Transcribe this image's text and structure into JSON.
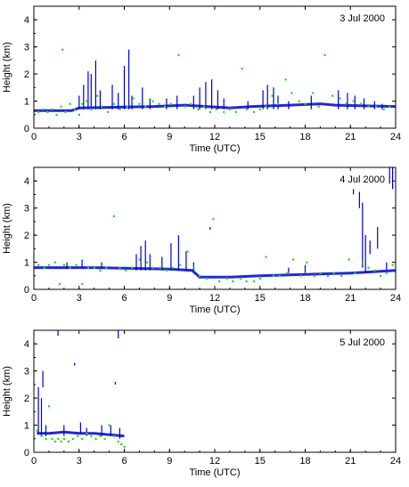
{
  "colors": {
    "cloud_base": "#0000cc",
    "green_points": "#22dd22",
    "frame": "#000000"
  },
  "chart_data": [
    {
      "type": "scatter",
      "title": "3 Jul 2000",
      "xlabel": "Time (UTC)",
      "ylabel": "Height (km)",
      "xlim": [
        0,
        24
      ],
      "ylim": [
        0,
        4.5
      ],
      "xticks": [
        "0",
        "3",
        "6",
        "9",
        "12",
        "15",
        "18",
        "21",
        "24"
      ],
      "yticks": [
        "0",
        "1",
        "2",
        "3",
        "4"
      ],
      "series": [
        {
          "color": "#0000cc",
          "marker": "vertical-streak",
          "points": [
            [
              3.0,
              0.7,
              1.2
            ],
            [
              3.3,
              0.7,
              1.6
            ],
            [
              3.6,
              0.7,
              2.1
            ],
            [
              3.8,
              0.7,
              2.0
            ],
            [
              4.1,
              0.7,
              2.5
            ],
            [
              4.4,
              0.7,
              1.4
            ],
            [
              5.2,
              0.7,
              1.6
            ],
            [
              5.6,
              0.7,
              1.3
            ],
            [
              6.0,
              0.7,
              2.3
            ],
            [
              6.3,
              0.7,
              2.9
            ],
            [
              6.5,
              0.7,
              1.2
            ],
            [
              7.2,
              0.7,
              1.5
            ],
            [
              7.7,
              0.7,
              1.1
            ],
            [
              8.8,
              0.7,
              1.1
            ],
            [
              9.5,
              0.7,
              1.2
            ],
            [
              10.6,
              0.7,
              1.2
            ],
            [
              11.0,
              0.7,
              1.5
            ],
            [
              11.4,
              0.7,
              1.7
            ],
            [
              11.8,
              0.7,
              1.8
            ],
            [
              12.2,
              0.7,
              1.4
            ],
            [
              12.6,
              0.7,
              1.1
            ],
            [
              14.2,
              0.7,
              1.0
            ],
            [
              15.2,
              0.7,
              1.4
            ],
            [
              15.5,
              0.7,
              1.6
            ],
            [
              15.9,
              0.7,
              1.5
            ],
            [
              16.2,
              0.7,
              1.2
            ],
            [
              16.9,
              0.7,
              1.0
            ],
            [
              18.4,
              0.7,
              1.2
            ],
            [
              20.2,
              0.7,
              1.4
            ],
            [
              20.8,
              0.7,
              1.3
            ],
            [
              21.3,
              0.7,
              1.2
            ],
            [
              21.9,
              0.7,
              1.1
            ],
            [
              22.6,
              0.7,
              1.0
            ],
            [
              23.1,
              0.7,
              0.9
            ]
          ],
          "baseline": {
            "x": [
              0.0,
              2.5,
              3.0,
              8.0,
              10.0,
              13.0,
              14.5,
              17.0,
              19.0,
              20.0,
              24.0
            ],
            "y": [
              0.65,
              0.65,
              0.75,
              0.8,
              0.85,
              0.75,
              0.8,
              0.85,
              0.9,
              0.85,
              0.8
            ]
          }
        },
        {
          "color": "#22dd22",
          "marker": "dot",
          "points": [
            [
              0.3,
              0.6
            ],
            [
              0.6,
              0.7
            ],
            [
              0.9,
              0.6
            ],
            [
              1.2,
              0.7
            ],
            [
              1.5,
              0.5
            ],
            [
              1.8,
              0.8
            ],
            [
              1.9,
              2.9
            ],
            [
              2.1,
              0.6
            ],
            [
              2.4,
              0.9
            ],
            [
              2.7,
              0.7
            ],
            [
              3.0,
              0.5
            ],
            [
              3.2,
              0.9
            ],
            [
              3.5,
              1.0
            ],
            [
              3.8,
              0.7
            ],
            [
              4.2,
              1.2
            ],
            [
              4.5,
              0.8
            ],
            [
              4.9,
              0.6
            ],
            [
              5.3,
              0.9
            ],
            [
              5.7,
              0.7
            ],
            [
              6.2,
              0.8
            ],
            [
              6.6,
              1.1
            ],
            [
              7.0,
              0.9
            ],
            [
              7.4,
              0.8
            ],
            [
              7.9,
              1.0
            ],
            [
              8.3,
              0.9
            ],
            [
              8.7,
              0.8
            ],
            [
              9.1,
              0.9
            ],
            [
              9.6,
              2.7
            ],
            [
              10.0,
              0.8
            ],
            [
              10.4,
              0.9
            ],
            [
              10.9,
              0.7
            ],
            [
              11.3,
              0.8
            ],
            [
              11.7,
              0.6
            ],
            [
              12.1,
              0.7
            ],
            [
              12.6,
              0.6
            ],
            [
              13.0,
              0.7
            ],
            [
              13.4,
              0.6
            ],
            [
              13.8,
              2.2
            ],
            [
              14.1,
              0.7
            ],
            [
              14.6,
              0.6
            ],
            [
              15.0,
              0.7
            ],
            [
              15.4,
              0.8
            ],
            [
              15.8,
              1.2
            ],
            [
              16.2,
              0.9
            ],
            [
              16.7,
              1.8
            ],
            [
              17.1,
              1.3
            ],
            [
              17.6,
              1.0
            ],
            [
              18.0,
              0.9
            ],
            [
              18.5,
              1.3
            ],
            [
              18.9,
              0.8
            ],
            [
              19.3,
              2.7
            ],
            [
              19.8,
              1.2
            ],
            [
              20.3,
              1.1
            ],
            [
              20.7,
              0.9
            ],
            [
              21.2,
              1.0
            ],
            [
              21.7,
              0.9
            ],
            [
              22.2,
              0.8
            ],
            [
              22.7,
              0.8
            ],
            [
              23.2,
              0.7
            ],
            [
              23.6,
              0.8
            ]
          ]
        }
      ]
    },
    {
      "type": "scatter",
      "title": "4 Jul 2000",
      "xlabel": "Time (UTC)",
      "ylabel": "Height (km)",
      "xlim": [
        0,
        24
      ],
      "ylim": [
        0,
        4.5
      ],
      "xticks": [
        "0",
        "3",
        "6",
        "9",
        "12",
        "15",
        "18",
        "21",
        "24"
      ],
      "yticks": [
        "0",
        "1",
        "2",
        "3",
        "4"
      ],
      "series": [
        {
          "color": "#0000cc",
          "marker": "vertical-streak",
          "points": [
            [
              2.2,
              0.75,
              1.0
            ],
            [
              3.2,
              0.8,
              1.1
            ],
            [
              4.5,
              0.8,
              1.0
            ],
            [
              6.8,
              0.7,
              1.3
            ],
            [
              7.1,
              0.7,
              1.6
            ],
            [
              7.4,
              0.7,
              1.8
            ],
            [
              7.7,
              0.7,
              1.3
            ],
            [
              8.5,
              0.7,
              1.2
            ],
            [
              9.1,
              0.7,
              1.7
            ],
            [
              9.6,
              0.7,
              2.0
            ],
            [
              10.1,
              0.7,
              1.4
            ],
            [
              10.6,
              0.7,
              1.0
            ],
            [
              11.7,
              2.2,
              2.3
            ],
            [
              16.9,
              0.6,
              0.8
            ],
            [
              18.0,
              0.6,
              0.9
            ],
            [
              21.2,
              3.5,
              3.7
            ],
            [
              21.6,
              3.0,
              3.6
            ],
            [
              21.8,
              0.8,
              3.2
            ],
            [
              22.0,
              0.6,
              2.0
            ],
            [
              22.3,
              1.3,
              1.8
            ],
            [
              22.8,
              1.5,
              2.3
            ],
            [
              23.4,
              0.7,
              1.0
            ],
            [
              23.6,
              3.9,
              4.5
            ],
            [
              23.8,
              3.7,
              4.5
            ]
          ],
          "baseline": {
            "x": [
              0.0,
              4.0,
              9.0,
              10.5,
              11.0,
              13.0,
              15.0,
              18.0,
              21.0,
              24.0
            ],
            "y": [
              0.8,
              0.8,
              0.75,
              0.7,
              0.45,
              0.45,
              0.5,
              0.55,
              0.6,
              0.7
            ]
          }
        },
        {
          "color": "#22dd22",
          "marker": "dot",
          "points": [
            [
              0.3,
              0.9
            ],
            [
              0.7,
              0.8
            ],
            [
              1.0,
              0.9
            ],
            [
              1.4,
              1.0
            ],
            [
              1.7,
              0.2
            ],
            [
              2.0,
              0.9
            ],
            [
              2.4,
              0.8
            ],
            [
              2.8,
              0.9
            ],
            [
              3.2,
              0.2
            ],
            [
              3.6,
              0.8
            ],
            [
              4.0,
              0.8
            ],
            [
              4.4,
              0.7
            ],
            [
              4.8,
              0.8
            ],
            [
              5.3,
              2.7
            ],
            [
              5.7,
              0.8
            ],
            [
              6.1,
              0.7
            ],
            [
              6.5,
              0.8
            ],
            [
              7.0,
              1.1
            ],
            [
              7.5,
              1.0
            ],
            [
              7.9,
              0.8
            ],
            [
              8.4,
              0.8
            ],
            [
              8.8,
              0.7
            ],
            [
              9.2,
              0.8
            ],
            [
              9.7,
              0.9
            ],
            [
              10.2,
              1.4
            ],
            [
              10.6,
              0.8
            ],
            [
              11.0,
              0.5
            ],
            [
              11.5,
              0.4
            ],
            [
              11.9,
              2.6
            ],
            [
              12.3,
              0.3
            ],
            [
              12.8,
              0.4
            ],
            [
              13.2,
              0.3
            ],
            [
              13.7,
              0.4
            ],
            [
              14.1,
              0.3
            ],
            [
              14.6,
              0.3
            ],
            [
              15.0,
              0.4
            ],
            [
              15.4,
              1.2
            ],
            [
              15.9,
              0.5
            ],
            [
              16.3,
              0.5
            ],
            [
              16.8,
              0.6
            ],
            [
              17.2,
              1.1
            ],
            [
              17.7,
              0.5
            ],
            [
              18.1,
              1.0
            ],
            [
              18.6,
              0.5
            ],
            [
              19.0,
              0.6
            ],
            [
              19.5,
              0.5
            ],
            [
              19.9,
              0.6
            ],
            [
              20.4,
              0.5
            ],
            [
              20.9,
              1.1
            ],
            [
              21.3,
              0.6
            ],
            [
              21.8,
              1.0
            ],
            [
              22.2,
              0.8
            ],
            [
              22.6,
              0.7
            ],
            [
              23.0,
              0.5
            ],
            [
              23.4,
              0.6
            ],
            [
              23.8,
              0.9
            ]
          ]
        }
      ]
    },
    {
      "type": "scatter",
      "title": "5 Jul 2000",
      "xlabel": "Time (UTC)",
      "ylabel": "Height (km)",
      "xlim": [
        0,
        24
      ],
      "ylim": [
        0,
        4.5
      ],
      "xticks": [
        "0",
        "3",
        "6",
        "9",
        "12",
        "15",
        "18",
        "21",
        "24"
      ],
      "yticks": [
        "0",
        "1",
        "2",
        "3",
        "4"
      ],
      "series": [
        {
          "color": "#0000cc",
          "marker": "vertical-streak",
          "points": [
            [
              0.3,
              0.7,
              2.4
            ],
            [
              0.5,
              0.6,
              2.0
            ],
            [
              0.6,
              2.4,
              3.0
            ],
            [
              0.8,
              0.6,
              1.0
            ],
            [
              1.6,
              4.3,
              4.5
            ],
            [
              2.0,
              0.6,
              1.0
            ],
            [
              2.7,
              3.2,
              3.3
            ],
            [
              3.1,
              0.7,
              1.1
            ],
            [
              3.5,
              0.6,
              0.9
            ],
            [
              4.5,
              0.6,
              1.0
            ],
            [
              5.1,
              0.6,
              1.0
            ],
            [
              5.4,
              2.5,
              2.6
            ],
            [
              5.6,
              4.2,
              4.5
            ],
            [
              5.7,
              0.5,
              0.9
            ]
          ],
          "baseline": {
            "x": [
              0.2,
              1.0,
              2.0,
              3.0,
              4.0,
              5.0,
              6.0
            ],
            "y": [
              0.7,
              0.7,
              0.75,
              0.7,
              0.7,
              0.65,
              0.6
            ]
          }
        },
        {
          "color": "#22dd22",
          "marker": "dot",
          "points": [
            [
              0.2,
              0.8
            ],
            [
              0.5,
              0.6
            ],
            [
              0.8,
              0.5
            ],
            [
              1.0,
              1.7
            ],
            [
              1.2,
              0.5
            ],
            [
              1.4,
              0.4
            ],
            [
              1.6,
              0.5
            ],
            [
              1.8,
              0.4
            ],
            [
              2.0,
              0.5
            ],
            [
              2.3,
              0.4
            ],
            [
              2.6,
              0.5
            ],
            [
              2.9,
              0.6
            ],
            [
              3.2,
              0.5
            ],
            [
              3.5,
              0.7
            ],
            [
              3.8,
              0.6
            ],
            [
              4.1,
              0.5
            ],
            [
              4.4,
              0.6
            ],
            [
              4.7,
              0.5
            ],
            [
              5.0,
              1.0
            ],
            [
              5.3,
              0.6
            ],
            [
              5.6,
              0.4
            ],
            [
              5.8,
              0.3
            ],
            [
              6.0,
              0.2
            ]
          ]
        }
      ]
    }
  ]
}
